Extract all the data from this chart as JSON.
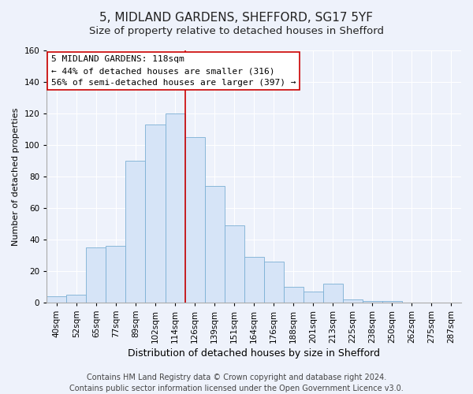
{
  "title": "5, MIDLAND GARDENS, SHEFFORD, SG17 5YF",
  "subtitle": "Size of property relative to detached houses in Shefford",
  "xlabel": "Distribution of detached houses by size in Shefford",
  "ylabel": "Number of detached properties",
  "bar_labels": [
    "40sqm",
    "52sqm",
    "65sqm",
    "77sqm",
    "89sqm",
    "102sqm",
    "114sqm",
    "126sqm",
    "139sqm",
    "151sqm",
    "164sqm",
    "176sqm",
    "188sqm",
    "201sqm",
    "213sqm",
    "225sqm",
    "238sqm",
    "250sqm",
    "262sqm",
    "275sqm",
    "287sqm"
  ],
  "bar_values": [
    4,
    5,
    35,
    36,
    90,
    113,
    120,
    105,
    74,
    49,
    29,
    26,
    10,
    7,
    12,
    2,
    1,
    1,
    0,
    0,
    0
  ],
  "bar_color": "#d6e4f7",
  "bar_edge_color": "#7bafd4",
  "vline_color": "#cc0000",
  "ylim": [
    0,
    160
  ],
  "yticks": [
    0,
    20,
    40,
    60,
    80,
    100,
    120,
    140,
    160
  ],
  "annotation_title": "5 MIDLAND GARDENS: 118sqm",
  "annotation_line1": "← 44% of detached houses are smaller (316)",
  "annotation_line2": "56% of semi-detached houses are larger (397) →",
  "footer1": "Contains HM Land Registry data © Crown copyright and database right 2024.",
  "footer2": "Contains public sector information licensed under the Open Government Licence v3.0.",
  "background_color": "#eef2fb",
  "plot_background": "#eef2fb",
  "grid_color": "#ffffff",
  "title_fontsize": 11,
  "subtitle_fontsize": 9.5,
  "xlabel_fontsize": 9,
  "ylabel_fontsize": 8,
  "tick_fontsize": 7.5,
  "footer_fontsize": 7,
  "annotation_fontsize": 8
}
